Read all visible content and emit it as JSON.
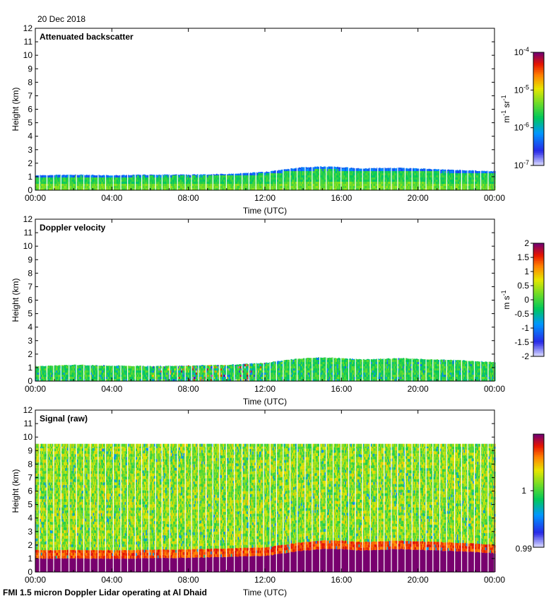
{
  "date": "20 Dec 2018",
  "footer": "FMI 1.5 micron Doppler Lidar operating at Al Dhaid",
  "chart_data": [
    {
      "type": "heatmap",
      "title": "Attenuated backscatter",
      "xlabel": "Time (UTC)",
      "ylabel": "Height (km)",
      "x_ticks": [
        "00:00",
        "04:00",
        "08:00",
        "12:00",
        "16:00",
        "20:00",
        "00:00"
      ],
      "xlim_hours": [
        0,
        24
      ],
      "ylim": [
        0,
        12
      ],
      "y_ticks": [
        "0",
        "1",
        "2",
        "3",
        "4",
        "5",
        "6",
        "7",
        "8",
        "9",
        "10",
        "11",
        "12"
      ],
      "colorbar": {
        "scale": "log",
        "ticks": [
          "10^-4",
          "10^-5",
          "10^-6",
          "10^-7"
        ],
        "unit": "m-1 sr-1"
      },
      "signal_top_km": [
        {
          "t": 0,
          "h": 1.1
        },
        {
          "t": 2,
          "h": 1.15
        },
        {
          "t": 4,
          "h": 1.1
        },
        {
          "t": 6,
          "h": 1.15
        },
        {
          "t": 8,
          "h": 1.15
        },
        {
          "t": 10,
          "h": 1.2
        },
        {
          "t": 12,
          "h": 1.35
        },
        {
          "t": 13,
          "h": 1.55
        },
        {
          "t": 14,
          "h": 1.7
        },
        {
          "t": 15,
          "h": 1.75
        },
        {
          "t": 16,
          "h": 1.7
        },
        {
          "t": 17,
          "h": 1.6
        },
        {
          "t": 18,
          "h": 1.65
        },
        {
          "t": 19,
          "h": 1.65
        },
        {
          "t": 20,
          "h": 1.6
        },
        {
          "t": 22,
          "h": 1.5
        },
        {
          "t": 24,
          "h": 1.4
        }
      ]
    },
    {
      "type": "heatmap",
      "title": "Doppler velocity",
      "xlabel": "Time (UTC)",
      "ylabel": "Height (km)",
      "x_ticks": [
        "00:00",
        "04:00",
        "08:00",
        "12:00",
        "16:00",
        "20:00",
        "00:00"
      ],
      "xlim_hours": [
        0,
        24
      ],
      "ylim": [
        0,
        12
      ],
      "y_ticks": [
        "0",
        "1",
        "2",
        "3",
        "4",
        "5",
        "6",
        "7",
        "8",
        "9",
        "10",
        "11",
        "12"
      ],
      "colorbar": {
        "scale": "linear",
        "range": [
          -2,
          2
        ],
        "ticks": [
          "2",
          "1.5",
          "1",
          "0.5",
          "0",
          "-0.5",
          "-1",
          "-1.5",
          "-2"
        ],
        "unit": "m s-1"
      },
      "signal_top_km": [
        {
          "t": 0,
          "h": 1.1
        },
        {
          "t": 2,
          "h": 1.2
        },
        {
          "t": 4,
          "h": 1.15
        },
        {
          "t": 6,
          "h": 1.1
        },
        {
          "t": 8,
          "h": 1.15
        },
        {
          "t": 10,
          "h": 1.2
        },
        {
          "t": 12,
          "h": 1.35
        },
        {
          "t": 13,
          "h": 1.55
        },
        {
          "t": 14,
          "h": 1.7
        },
        {
          "t": 15,
          "h": 1.75
        },
        {
          "t": 16,
          "h": 1.7
        },
        {
          "t": 17,
          "h": 1.6
        },
        {
          "t": 18,
          "h": 1.65
        },
        {
          "t": 19,
          "h": 1.7
        },
        {
          "t": 20,
          "h": 1.65
        },
        {
          "t": 22,
          "h": 1.55
        },
        {
          "t": 24,
          "h": 1.4
        }
      ]
    },
    {
      "type": "heatmap",
      "title": "Signal (raw)",
      "xlabel": "Time (UTC)",
      "ylabel": "Height (km)",
      "x_ticks": [
        "00:00",
        "04:00",
        "08:00",
        "12:00",
        "16:00",
        "20:00",
        "00:00"
      ],
      "xlim_hours": [
        0,
        24
      ],
      "ylim": [
        0,
        12
      ],
      "y_ticks": [
        "0",
        "1",
        "2",
        "3",
        "4",
        "5",
        "6",
        "7",
        "8",
        "9",
        "10",
        "11",
        "12"
      ],
      "data_top_km": 9.5,
      "colorbar": {
        "scale": "linear",
        "range": [
          0.99,
          1.01
        ],
        "ticks": [
          "1",
          "0.99"
        ]
      },
      "signal_top_km": [
        {
          "t": 0,
          "h": 1.0
        },
        {
          "t": 4,
          "h": 1.0
        },
        {
          "t": 8,
          "h": 1.05
        },
        {
          "t": 12,
          "h": 1.2
        },
        {
          "t": 14,
          "h": 1.6
        },
        {
          "t": 15,
          "h": 1.7
        },
        {
          "t": 16,
          "h": 1.7
        },
        {
          "t": 17,
          "h": 1.6
        },
        {
          "t": 19,
          "h": 1.7
        },
        {
          "t": 20,
          "h": 1.65
        },
        {
          "t": 22,
          "h": 1.55
        },
        {
          "t": 24,
          "h": 1.4
        }
      ]
    }
  ]
}
